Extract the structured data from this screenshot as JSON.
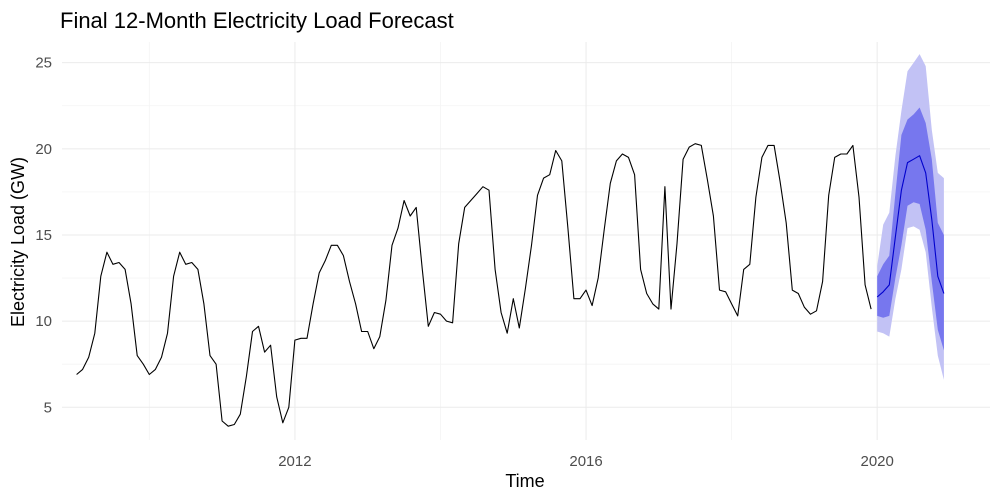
{
  "chart_data": {
    "type": "line",
    "title": "Final 12-Month Electricity Load Forecast",
    "xlabel": "Time",
    "ylabel": "Electricity Load (GW)",
    "xlim": [
      2008.8,
      2021.55
    ],
    "ylim": [
      3.1,
      26.2
    ],
    "x_ticks": [
      2012,
      2016,
      2020
    ],
    "y_ticks": [
      5,
      10,
      15,
      20,
      25
    ],
    "grid": true,
    "legend": "none",
    "colors": {
      "history": "#000000",
      "forecast_line": "#0000cc",
      "band_80": "#7777ee",
      "band_95": "#c2c2f5"
    },
    "series": [
      {
        "role": "history",
        "start": 2009,
        "frequency": 12,
        "values": [
          6.9,
          7.2,
          7.9,
          9.3,
          12.6,
          14.0,
          13.3,
          13.4,
          13.0,
          11.0,
          8.0,
          7.5,
          6.9,
          7.2,
          7.9,
          9.3,
          12.6,
          14.0,
          13.3,
          13.4,
          13.0,
          11.0,
          8.0,
          7.5,
          4.2,
          3.9,
          4.0,
          4.6,
          6.8,
          9.4,
          9.7,
          8.2,
          8.6,
          5.6,
          4.1,
          5.0,
          8.9,
          9.0,
          9.0,
          11.0,
          12.8,
          13.5,
          14.4,
          14.4,
          13.8,
          12.3,
          11.0,
          9.4,
          9.4,
          8.4,
          9.1,
          11.2,
          14.4,
          15.4,
          17.0,
          16.1,
          16.6,
          13.0,
          9.7,
          10.5,
          10.4,
          10.0,
          9.9,
          14.5,
          16.6,
          17.0,
          17.4,
          17.8,
          17.6,
          13.0,
          10.5,
          9.3,
          11.3,
          9.6,
          11.9,
          14.4,
          17.3,
          18.3,
          18.5,
          19.9,
          19.3,
          15.4,
          11.3,
          11.3,
          11.8,
          10.9,
          12.5,
          15.3,
          18.0,
          19.3,
          19.7,
          19.5,
          18.5,
          13.0,
          11.6,
          11.0,
          10.7,
          17.8,
          10.7,
          14.5,
          19.4,
          20.1,
          20.3,
          20.2,
          18.2,
          16.1,
          11.8,
          11.7,
          11.0,
          10.3,
          13.0,
          13.3,
          17.2,
          19.5,
          20.2,
          20.2,
          18.1,
          15.7,
          11.8,
          11.6,
          10.8,
          10.4,
          10.6,
          12.3,
          17.3,
          19.5,
          19.7,
          19.7,
          20.2,
          17.2,
          12.1,
          10.7
        ]
      },
      {
        "role": "forecast",
        "start": 2020,
        "frequency": 12,
        "values": [
          11.4,
          11.7,
          12.1,
          14.9,
          17.6,
          19.2,
          19.4,
          19.6,
          18.6,
          15.9,
          12.6,
          11.6
        ],
        "lo80": [
          10.3,
          10.2,
          10.3,
          12.5,
          14.4,
          16.7,
          16.9,
          16.8,
          15.3,
          12.3,
          9.5,
          8.3
        ],
        "hi80": [
          12.6,
          13.3,
          13.8,
          17.4,
          20.8,
          21.7,
          22.0,
          22.4,
          21.5,
          19.4,
          15.7,
          15.0
        ],
        "lo95": [
          9.4,
          9.3,
          9.1,
          11.3,
          13.0,
          15.4,
          15.5,
          15.3,
          14.0,
          10.8,
          8.0,
          6.6
        ],
        "hi95": [
          13.2,
          15.6,
          16.3,
          19.6,
          22.2,
          24.5,
          25.0,
          25.5,
          24.8,
          21.1,
          18.6,
          18.3
        ]
      }
    ]
  }
}
